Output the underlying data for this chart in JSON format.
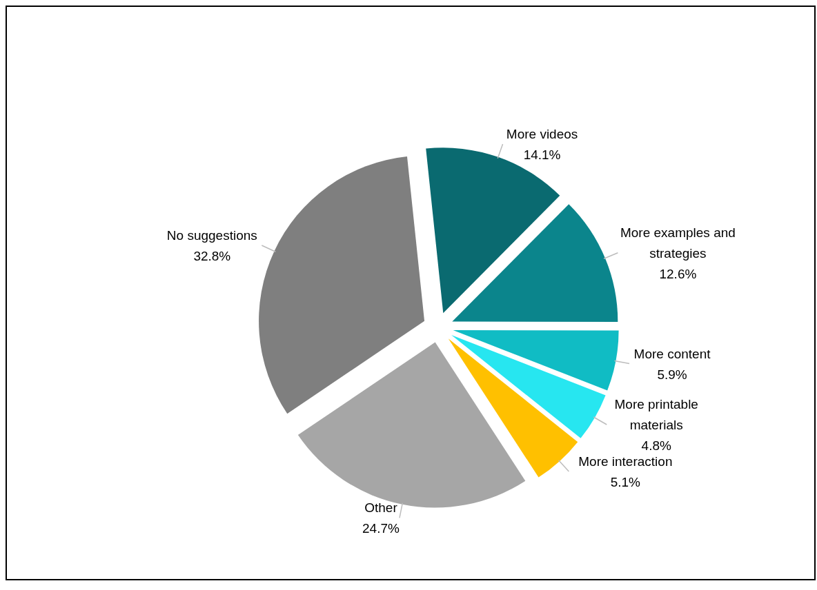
{
  "chart_data": {
    "type": "pie",
    "categories": [
      "More videos",
      "More examples and strategies",
      "More content",
      "More printable materials",
      "More interaction",
      "Other",
      "No suggestions"
    ],
    "values": [
      14.1,
      12.6,
      5.9,
      4.8,
      5.1,
      24.7,
      32.8
    ],
    "colors": [
      "#0a6a70",
      "#0b858c",
      "#10bcc4",
      "#27e6f0",
      "#ffc000",
      "#a6a6a6",
      "#7f7f7f"
    ],
    "value_labels": [
      "14.1%",
      "12.6%",
      "5.9%",
      "4.8%",
      "5.1%",
      "24.7%",
      "32.8%"
    ]
  }
}
